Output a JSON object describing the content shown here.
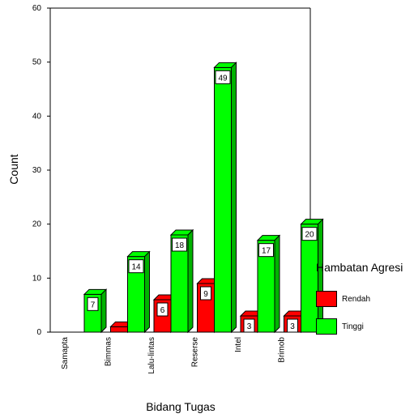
{
  "chart_data": {
    "type": "bar",
    "xlabel": "Bidang Tugas",
    "ylabel": "Count",
    "ylim": [
      0,
      60
    ],
    "yticks": [
      0,
      10,
      20,
      30,
      40,
      50,
      60
    ],
    "grid": false,
    "legend_placement": "right",
    "categories": [
      "Samapta",
      "Bimmas",
      "Lalu-lintas",
      "Reserse",
      "Intel",
      "Brimob"
    ],
    "legend_title": "Hambatan Agresi",
    "series": [
      {
        "name": "Rendah",
        "color": "#ff0000",
        "values": [
          0,
          1,
          6,
          9,
          3,
          3
        ],
        "data_labels": [
          "",
          "",
          "6",
          "9",
          "3",
          "3"
        ]
      },
      {
        "name": "Tinggi",
        "color": "#00ff00",
        "values": [
          7,
          14,
          18,
          49,
          17,
          20
        ],
        "data_labels": [
          "7",
          "14",
          "18",
          "49",
          "17",
          "20"
        ]
      }
    ]
  }
}
